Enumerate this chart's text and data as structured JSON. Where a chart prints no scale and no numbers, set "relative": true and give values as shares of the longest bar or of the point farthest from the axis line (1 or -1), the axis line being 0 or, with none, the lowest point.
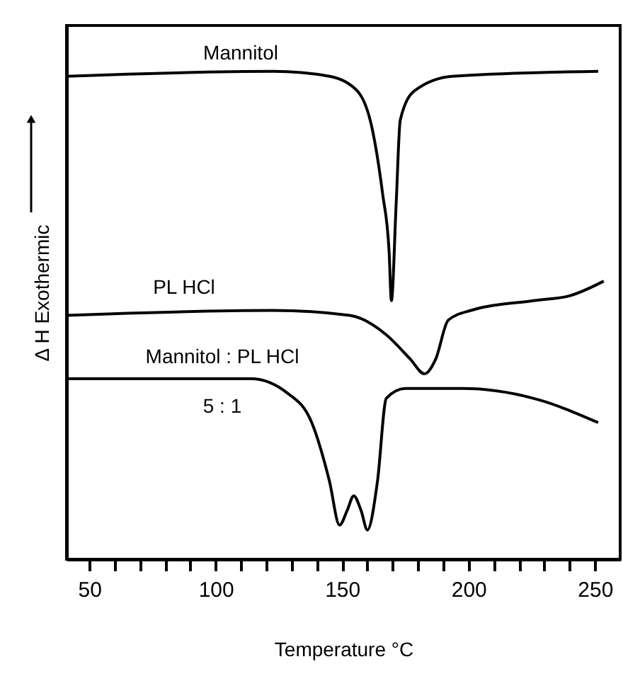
{
  "chart_data": {
    "type": "line",
    "relative": true,
    "xlabel": "Temperature °C",
    "ylabel": "Δ H Exothermic",
    "xlim": [
      41,
      260
    ],
    "xticks": [
      50,
      {
        "value": 60,
        "label": null
      },
      {
        "value": 70,
        "label": null
      },
      {
        "value": 80,
        "label": null
      },
      {
        "value": 90,
        "label": null
      },
      100,
      {
        "value": 110,
        "label": null
      },
      {
        "value": 120,
        "label": null
      },
      {
        "value": 130,
        "label": null
      },
      {
        "value": 140,
        "label": null
      },
      150,
      {
        "value": 160,
        "label": null
      },
      {
        "value": 170,
        "label": null
      },
      {
        "value": 180,
        "label": null
      },
      {
        "value": 190,
        "label": null
      },
      200,
      {
        "value": 210,
        "label": null
      },
      {
        "value": 220,
        "label": null
      },
      {
        "value": 230,
        "label": null
      },
      {
        "value": 240,
        "label": null
      },
      250
    ],
    "tick_labels": "x",
    "grid": false,
    "line_style": "solid",
    "marker": "none",
    "series": [
      {
        "name": "Mannitol",
        "color": "#000000",
        "x": [
          41,
          122.8,
          145,
          156,
          162,
          166,
          168.6,
          169.5,
          171.4,
          173,
          178.6,
          193.7,
          251.3
        ],
        "values": [
          0.99,
          1.0,
          0.99,
          0.96,
          0.88,
          0.75,
          0.63,
          0.53,
          0.73,
          0.9,
          0.96,
          0.99,
          1.0
        ]
      },
      {
        "name": "PL HCl",
        "color": "#000000",
        "x": [
          41,
          122.8,
          153,
          167.5,
          177,
          182.6,
          187,
          192,
          201,
          225.6,
          240,
          253.5
        ],
        "values": [
          0.5,
          0.51,
          0.5,
          0.46,
          0.41,
          0.38,
          0.41,
          0.49,
          0.51,
          0.53,
          0.54,
          0.57
        ]
      },
      {
        "name": "Mannitol : PL HCl\n5 : 1",
        "color": "#000000",
        "x": [
          41,
          114,
          128.5,
          138,
          145,
          149,
          152,
          154.6,
          157.5,
          160,
          164,
          167.5,
          175,
          197.7,
          225.6,
          251.3
        ],
        "values": [
          0.37,
          0.37,
          0.34,
          0.28,
          0.16,
          0.07,
          0.1,
          0.13,
          0.1,
          0.06,
          0.16,
          0.33,
          0.35,
          0.35,
          0.33,
          0.28
        ]
      }
    ]
  }
}
